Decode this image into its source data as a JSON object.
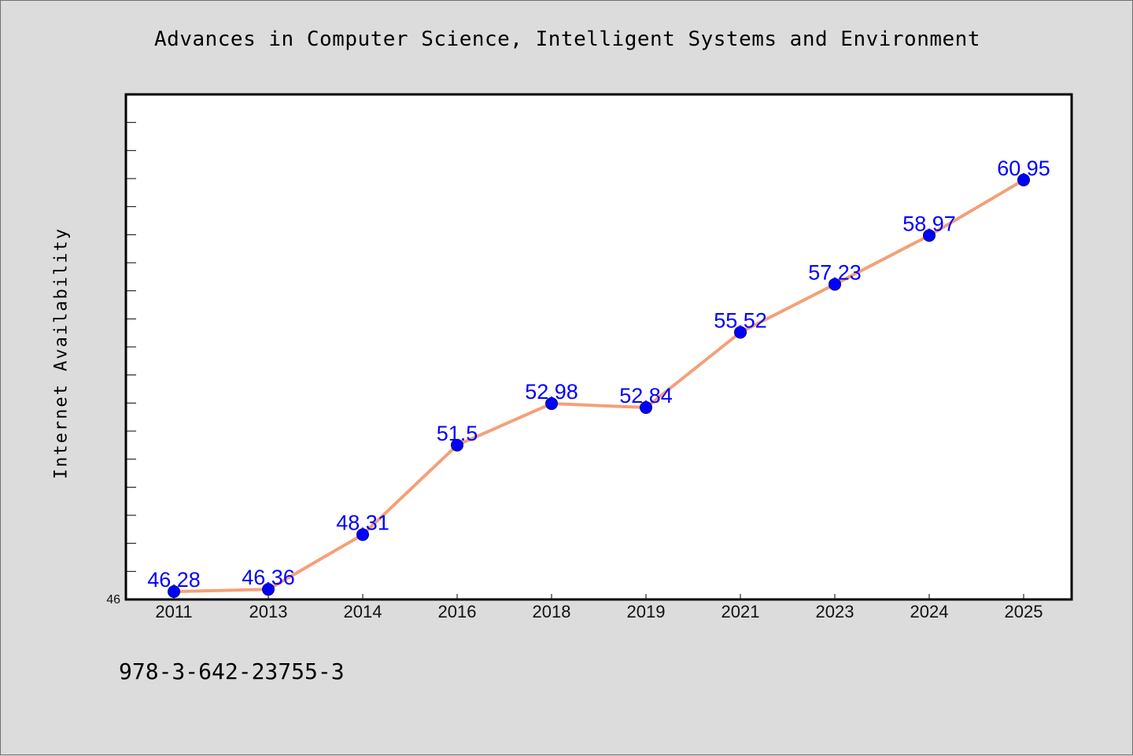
{
  "title": "Advances in Computer Science, Intelligent Systems and Environment",
  "footer_text": "978-3-642-23755-3",
  "chart_data": {
    "type": "line",
    "title": "Advances in Computer Science, Intelligent Systems and Environment",
    "xlabel": "",
    "ylabel": "Internet Availability",
    "categories": [
      "2011",
      "2013",
      "2014",
      "2016",
      "2018",
      "2019",
      "2021",
      "2023",
      "2024",
      "2025"
    ],
    "series": [
      {
        "values": [
          46.28,
          46.36,
          48.31,
          51.5,
          52.98,
          52.84,
          55.52,
          57.23,
          58.97,
          60.95
        ]
      }
    ],
    "data_labels": [
      "46.28",
      "46.36",
      "48.31",
      "51.5",
      "52.98",
      "52.84",
      "55.52",
      "57.23",
      "58.97",
      "60.95"
    ],
    "ylim": [
      46,
      64
    ],
    "y_tick_labels": [
      "46"
    ],
    "grid": false,
    "legend": "none",
    "colors": {
      "line": "#f4a07a",
      "marker": "#0000ff",
      "marker_edge": "#000080",
      "data_label": "#0000ff",
      "plot_background": "#ffffff",
      "figure_background": "#dcdcdc",
      "axes_border": "#000000"
    }
  }
}
